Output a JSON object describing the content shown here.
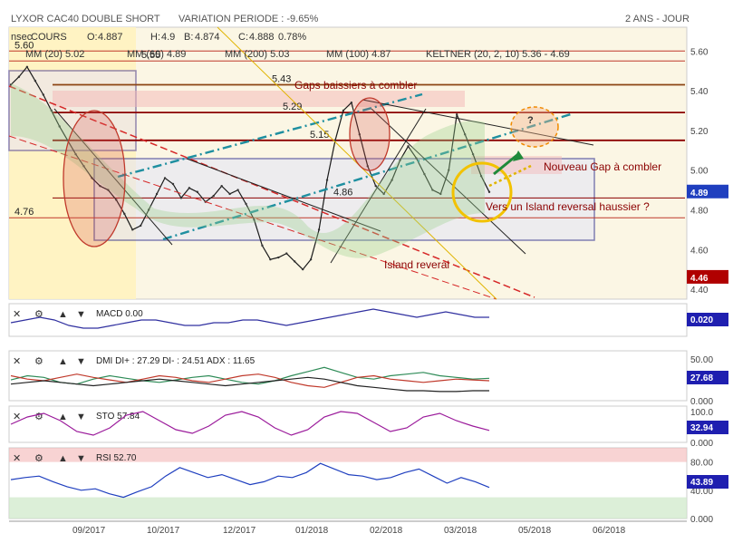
{
  "header": {
    "instrument": "LYXOR CAC40 DOUBLE SHORT",
    "variation": "VARIATION PERIODE : -9.65%",
    "period": "2 ANS - JOUR"
  },
  "legend": {
    "cours": "COURS",
    "ohlc": [
      {
        "k": "O:",
        "v": "4.887"
      },
      {
        "k": "H:",
        "v": "4.9"
      },
      {
        "k": "B:",
        "v": "4.874"
      },
      {
        "k": "C:",
        "v": "4.888"
      },
      {
        "k": "",
        "v": "0.78%"
      }
    ],
    "ma": [
      {
        "label": "MM (20)",
        "value": "5.02",
        "color": "#4a4aa0"
      },
      {
        "label": "MM (60)",
        "value": "4.89",
        "color": "#d4a000"
      },
      {
        "label": "MM (200)",
        "value": "5.03",
        "color": "#2e8b57"
      },
      {
        "label": "MM (100)",
        "value": "4.87",
        "color": "#20b2aa"
      },
      {
        "label": "KELTNER (20, 2, 10)",
        "value": "5.36 - 4.69",
        "color": "#2e7d32"
      }
    ]
  },
  "annotations": {
    "gaps": "Gaps baissiers à combler",
    "new_gap": "Nouveau Gap à combler",
    "island_towards": "Vers un Island reversal haussier ?",
    "island": "Island reveral",
    "question": "?",
    "corner_text": "nsec"
  },
  "levels": [
    {
      "label": "5.60",
      "value": 5.6
    },
    {
      "label": "5.55",
      "value": 5.55
    },
    {
      "label": "5.43",
      "value": 5.43
    },
    {
      "label": "5.29",
      "value": 5.29
    },
    {
      "label": "5.15",
      "value": 5.15
    },
    {
      "label": "4.86",
      "value": 4.86
    },
    {
      "label": "4.76",
      "value": 4.76
    }
  ],
  "price_tags": [
    {
      "label": "4.89",
      "value": 4.89,
      "color": "#1f3fbf"
    },
    {
      "label": "4.46",
      "value": 4.46,
      "color": "#b00000"
    }
  ],
  "indicators": {
    "macd": {
      "name": "MACD",
      "value": "0.00",
      "tag": "0.020",
      "ticks": []
    },
    "dmi": {
      "name": "DMI",
      "text": "DI+ : 27.29 DI- : 24.51 ADX : 11.65",
      "tag": "27.68",
      "ticks": [
        "50.00",
        "0.000"
      ]
    },
    "sto": {
      "name": "STO",
      "value": "57.84",
      "tag": "32.94",
      "ticks": [
        "100.0",
        "0.000"
      ]
    },
    "rsi": {
      "name": "RSI",
      "value": "52.70",
      "tag": "43.89",
      "ticks": [
        "80.00",
        "40.00",
        "0.000"
      ]
    }
  },
  "chart_data": {
    "type": "line",
    "title": "LYXOR CAC40 DOUBLE SHORT",
    "x_labels": [
      "09/2017",
      "10/2017",
      "12/2017",
      "01/2018",
      "02/2018",
      "03/2018",
      "05/2018",
      "06/2018"
    ],
    "y_ticks": [
      "5.60",
      "5.40",
      "5.20",
      "5.00",
      "4.80",
      "4.60",
      "4.40"
    ],
    "ylim": [
      4.35,
      5.72
    ],
    "series": [
      {
        "name": "COURS",
        "values": [
          5.43,
          5.47,
          5.52,
          5.45,
          5.38,
          5.3,
          5.22,
          5.15,
          5.08,
          5.02,
          4.96,
          4.92,
          4.9,
          4.85,
          4.78,
          4.7,
          4.72,
          4.8,
          4.88,
          4.96,
          4.93,
          4.86,
          4.91,
          4.89,
          4.84,
          4.87,
          4.92,
          4.88,
          4.9,
          4.83,
          4.75,
          4.62,
          4.55,
          4.56,
          4.58,
          4.54,
          4.5,
          4.55,
          4.7,
          4.95,
          5.15,
          5.3,
          5.34,
          5.18,
          5.02,
          4.92,
          4.88,
          4.95,
          5.05,
          5.12,
          5.06,
          4.98,
          4.9,
          4.88,
          5.0,
          5.28,
          5.18,
          5.08,
          4.97,
          4.89
        ]
      }
    ],
    "macd": [
      0.0,
      0.01,
      0.02,
      0.01,
      -0.01,
      -0.02,
      -0.02,
      -0.01,
      0.0,
      0.01,
      0.01,
      0.0,
      -0.01,
      -0.01,
      0.0,
      0.0,
      0.01,
      0.01,
      0.0,
      -0.01,
      0.0,
      0.01,
      0.02,
      0.03,
      0.04,
      0.05,
      0.04,
      0.03,
      0.02,
      0.03,
      0.04,
      0.03,
      0.02,
      0.02
    ],
    "dmi_plus": [
      25,
      30,
      28,
      22,
      20,
      26,
      30,
      27,
      24,
      22,
      25,
      28,
      30,
      26,
      22,
      20,
      24,
      30,
      35,
      40,
      34,
      28,
      26,
      30,
      32,
      34,
      30,
      28,
      26,
      27
    ],
    "dmi_minus": [
      30,
      26,
      24,
      28,
      32,
      28,
      25,
      22,
      26,
      30,
      28,
      24,
      22,
      26,
      30,
      32,
      28,
      22,
      18,
      16,
      22,
      28,
      30,
      26,
      24,
      22,
      24,
      26,
      25,
      24
    ],
    "adx": [
      20,
      22,
      24,
      22,
      20,
      18,
      20,
      22,
      24,
      26,
      24,
      22,
      20,
      18,
      20,
      22,
      24,
      26,
      28,
      26,
      22,
      18,
      16,
      14,
      12,
      12,
      11,
      11,
      12,
      12
    ],
    "sto": [
      50,
      70,
      80,
      60,
      30,
      20,
      40,
      75,
      85,
      60,
      35,
      25,
      45,
      75,
      85,
      70,
      40,
      20,
      35,
      70,
      85,
      80,
      55,
      30,
      40,
      70,
      80,
      60,
      45,
      33
    ],
    "rsi": [
      55,
      58,
      60,
      52,
      45,
      40,
      42,
      35,
      30,
      38,
      45,
      60,
      72,
      65,
      58,
      62,
      55,
      48,
      52,
      60,
      58,
      65,
      78,
      70,
      62,
      60,
      55,
      58,
      65,
      70,
      60,
      50,
      58,
      52,
      44
    ]
  }
}
